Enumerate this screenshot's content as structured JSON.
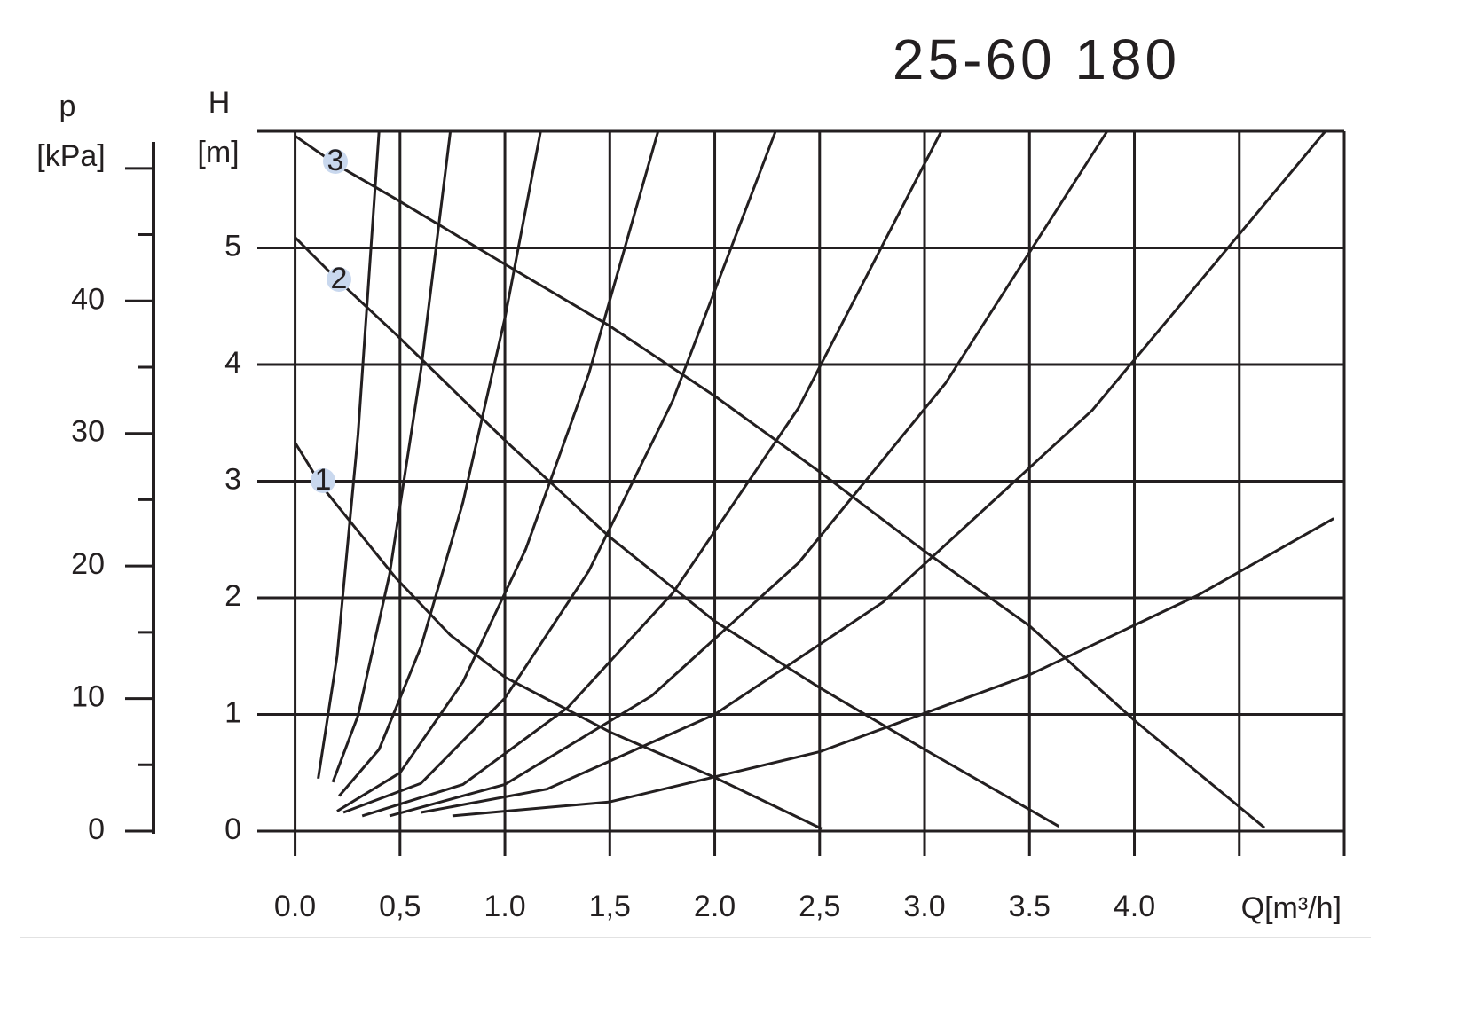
{
  "chart_data": {
    "type": "line",
    "title": "25-60 180",
    "y_label": "H",
    "y_unit": "[m]",
    "y2_label": "p",
    "y2_unit": "[kPa]",
    "x_label": "Q[m³/h]",
    "xlim": [
      -0.18,
      5.0
    ],
    "ylim": [
      0,
      6
    ],
    "y2lim": [
      0,
      52.8
    ],
    "xticks": [
      {
        "value": 0,
        "label": "0.0"
      },
      {
        "value": 0.5,
        "label": "0,5"
      },
      {
        "value": 1.0,
        "label": "1.0"
      },
      {
        "value": 1.5,
        "label": "1,5"
      },
      {
        "value": 2.0,
        "label": "2.0"
      },
      {
        "value": 2.5,
        "label": "2,5"
      },
      {
        "value": 3.0,
        "label": "3.0"
      },
      {
        "value": 3.5,
        "label": "3.5"
      },
      {
        "value": 4.0,
        "label": "4.0"
      },
      {
        "value": 4.5,
        "label": null
      },
      {
        "value": 5.0,
        "label": null
      }
    ],
    "yticks": [
      0,
      1,
      2,
      3,
      4,
      5
    ],
    "y2ticks": [
      0,
      10,
      20,
      30,
      40,
      {
        "value": 50,
        "label": null
      }
    ],
    "y2minor_ticks": [
      5,
      15,
      25,
      35,
      45
    ],
    "grid": true,
    "color": "#231f20",
    "series": [
      {
        "name": "1",
        "x": [
          0,
          0.13,
          0.48,
          0.74,
          1.0,
          1.5,
          2.0,
          2.51
        ],
        "values": [
          3.33,
          2.95,
          2.17,
          1.68,
          1.32,
          0.85,
          0.46,
          0.02
        ]
      },
      {
        "name": "2",
        "x": [
          0,
          0.2,
          0.48,
          1.0,
          1.5,
          2.0,
          2.5,
          3.0,
          3.64
        ],
        "values": [
          5.09,
          4.73,
          4.26,
          3.35,
          2.52,
          1.8,
          1.23,
          0.7,
          0.04
        ]
      },
      {
        "name": "3",
        "x": [
          0,
          0.2,
          0.48,
          1.0,
          1.5,
          2.0,
          2.5,
          3.0,
          3.5,
          4.0,
          4.62
        ],
        "values": [
          5.96,
          5.71,
          5.42,
          4.86,
          4.33,
          3.73,
          3.08,
          2.4,
          1.76,
          0.95,
          0.03
        ]
      },
      {
        "x": [
          0.11,
          0.2,
          0.3,
          0.4
        ],
        "values": [
          0.45,
          1.5,
          3.4,
          6.0
        ]
      },
      {
        "x": [
          0.18,
          0.3,
          0.45,
          0.6,
          0.74
        ],
        "values": [
          0.42,
          0.99,
          2.2,
          3.96,
          6.0
        ]
      },
      {
        "x": [
          0.21,
          0.4,
          0.6,
          0.8,
          1.0,
          1.17
        ],
        "values": [
          0.3,
          0.7,
          1.58,
          2.82,
          4.4,
          6.0
        ]
      },
      {
        "x": [
          0.2,
          0.5,
          0.8,
          1.1,
          1.4,
          1.73
        ],
        "values": [
          0.17,
          0.5,
          1.28,
          2.42,
          3.92,
          6.0
        ]
      },
      {
        "x": [
          0.23,
          0.6,
          1.0,
          1.4,
          1.8,
          2.29
        ],
        "values": [
          0.16,
          0.41,
          1.14,
          2.23,
          3.69,
          6.0
        ]
      },
      {
        "x": [
          0.32,
          0.8,
          1.3,
          1.8,
          2.4,
          3.08
        ],
        "values": [
          0.13,
          0.4,
          1.06,
          2.04,
          3.63,
          6.0
        ]
      },
      {
        "x": [
          0.45,
          1.0,
          1.7,
          2.4,
          3.1,
          3.87
        ],
        "values": [
          0.13,
          0.4,
          1.16,
          2.3,
          3.84,
          6.0
        ]
      },
      {
        "x": [
          0.6,
          1.2,
          2.0,
          2.8,
          3.8,
          4.91
        ],
        "values": [
          0.16,
          0.36,
          1.0,
          1.96,
          3.61,
          6.0
        ]
      },
      {
        "x": [
          0.75,
          1.5,
          2.5,
          3.5,
          4.3,
          4.95
        ],
        "values": [
          0.13,
          0.25,
          0.68,
          1.34,
          2.02,
          2.68
        ]
      }
    ]
  }
}
